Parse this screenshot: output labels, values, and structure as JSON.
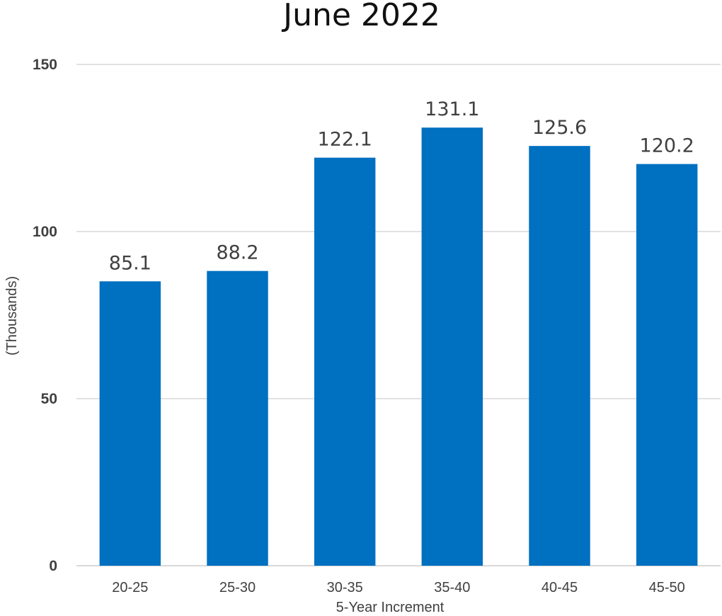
{
  "chart_data": {
    "type": "bar",
    "title": "June 2022",
    "xlabel": "5-Year Increment",
    "ylabel": "(Thousands)",
    "categories": [
      "20-25",
      "25-30",
      "30-35",
      "35-40",
      "40-45",
      "45-50"
    ],
    "values": [
      85.1,
      88.2,
      122.1,
      131.1,
      125.6,
      120.2
    ],
    "data_labels": [
      "85.1",
      "88.2",
      "122.1",
      "131.1",
      "125.6",
      "120.2"
    ],
    "ylim": [
      0,
      150
    ],
    "yticks": [
      0,
      50,
      100,
      150
    ],
    "ytick_labels": [
      "0",
      "50",
      "100",
      "150"
    ],
    "grid": true,
    "legend": "none",
    "colors": {
      "bar": "#0070c0",
      "grid": "#d9d9d9",
      "text": "#404040"
    }
  }
}
